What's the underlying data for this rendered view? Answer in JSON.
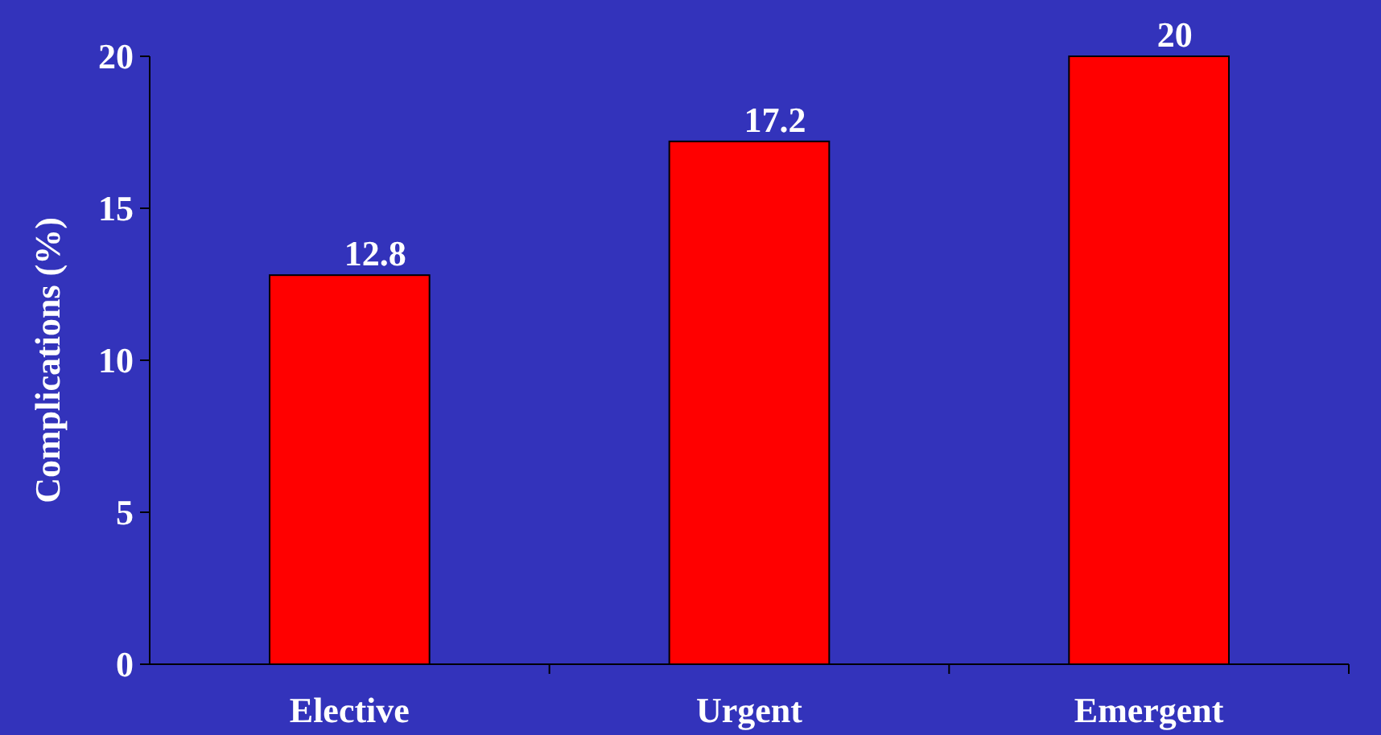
{
  "chart_data": {
    "type": "bar",
    "ylabel": "Complications (%)",
    "categories": [
      "Elective",
      "Urgent",
      "Emergent"
    ],
    "values": [
      12.8,
      17.2,
      20
    ],
    "color": "#ff0000",
    "ylim": [
      0,
      20
    ],
    "yticks": [
      0,
      5,
      10,
      15,
      20
    ],
    "data_labels": true,
    "grid": false
  }
}
